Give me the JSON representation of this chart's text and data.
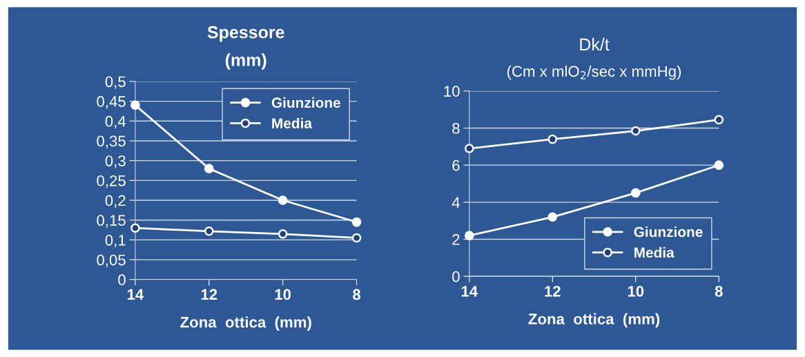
{
  "chart_data": [
    {
      "type": "line",
      "title": "Spessore",
      "subtitle": "(mm)",
      "xlabel": "Zona  ottica  (mm)",
      "categories": [
        "14",
        "12",
        "10",
        "8"
      ],
      "series": [
        {
          "name": "Giunzione",
          "color": "#ffffff",
          "marker": "circle",
          "values": [
            0.44,
            0.28,
            0.2,
            0.145
          ]
        },
        {
          "name": "Media",
          "color": "#ffffff",
          "marker": "circle",
          "values": [
            0.13,
            0.122,
            0.115,
            0.105
          ]
        }
      ],
      "ylim": [
        0,
        0.5
      ],
      "yticks": [
        0,
        {
          "value": 0.05,
          "label": "0,05"
        },
        {
          "value": 0.1,
          "label": "0,1"
        },
        {
          "value": 0.15,
          "label": "0,15"
        },
        {
          "value": 0.2,
          "label": "0,2"
        },
        {
          "value": 0.25,
          "label": "0,25"
        },
        {
          "value": 0.3,
          "label": "0,3"
        },
        {
          "value": 0.35,
          "label": "0,35"
        },
        {
          "value": 0.4,
          "label": "0,4"
        },
        {
          "value": 0.45,
          "label": "0,45"
        },
        {
          "value": 0.5,
          "label": "0,5"
        }
      ],
      "grid": "y",
      "legend": "top right"
    },
    {
      "type": "line",
      "title": "Dk/t",
      "subtitle": "(Cm x mlO$_{2}$/sec x mmHg)",
      "xlabel": "Zona  ottica  (mm)",
      "categories": [
        "14",
        "12",
        "10",
        "8"
      ],
      "series": [
        {
          "name": "Giunzione",
          "color": "#ffffff",
          "marker": "circle",
          "values": [
            2.2,
            3.2,
            4.5,
            6.0
          ]
        },
        {
          "name": "Media",
          "color": "#ffffff",
          "marker": "circle",
          "values": [
            6.9,
            7.4,
            7.85,
            8.45
          ]
        }
      ],
      "ylim": [
        0,
        10
      ],
      "yticks": [
        0,
        2,
        4,
        6,
        8,
        10
      ],
      "grid": "y",
      "legend": "bottom right"
    }
  ]
}
